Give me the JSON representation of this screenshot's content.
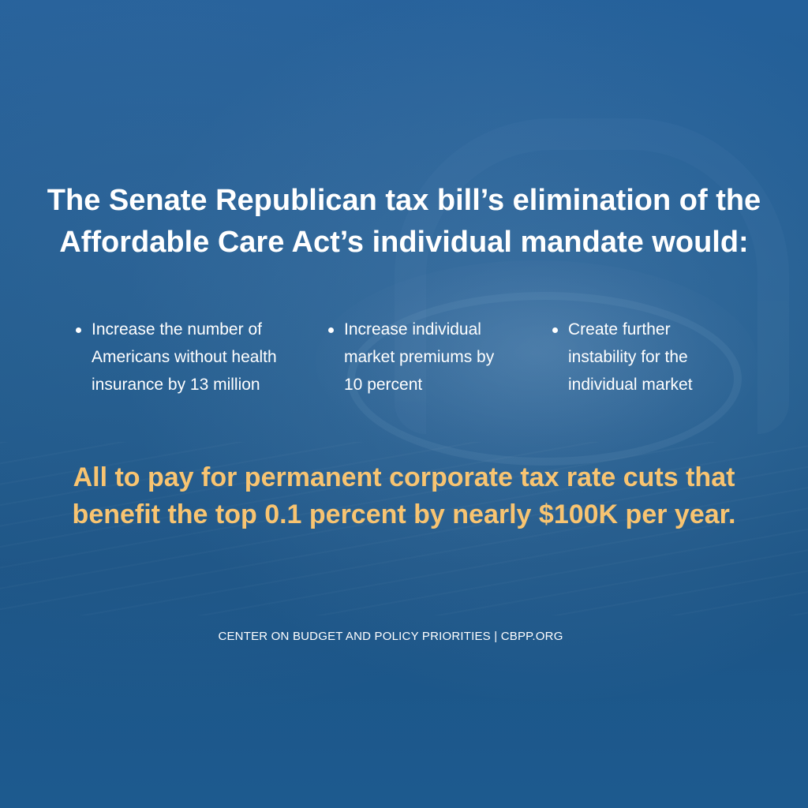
{
  "headline": {
    "line1": "The Senate Republican tax bill’s elimination of the",
    "line2": "Affordable Care Act’s individual mandate would:"
  },
  "bullets": [
    {
      "lines": [
        "Increase the number of",
        "Americans without health",
        "insurance by 13 million"
      ]
    },
    {
      "lines": [
        "Increase individual",
        "market premiums by",
        "10 percent"
      ]
    },
    {
      "lines": [
        "Create further",
        "instability for the",
        "individual market"
      ]
    }
  ],
  "callout": {
    "line1": "All to pay for permanent corporate tax rate cuts that",
    "line2": "benefit the top 0.1 percent by nearly $100K per year."
  },
  "footer": {
    "text": "CENTER ON BUDGET AND POLICY PRIORITIES | CBPP.ORG"
  },
  "colors": {
    "background": "#1f5a8c",
    "headline": "#ffffff",
    "callout": "#f8c471"
  }
}
